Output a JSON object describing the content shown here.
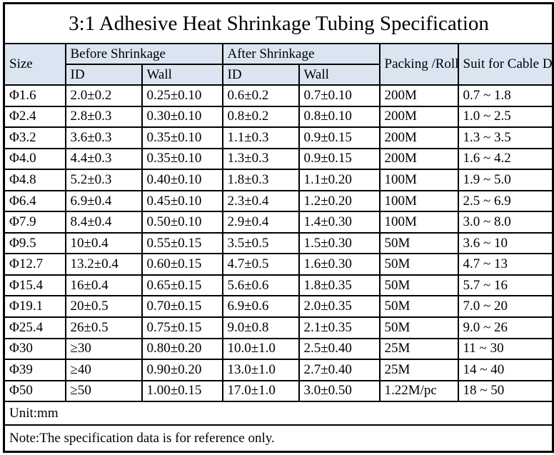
{
  "title": "3:1 Adhesive Heat Shrinkage Tubing Specification",
  "colors": {
    "header_bg": "#dbe5f1",
    "border": "#000000",
    "text": "#000000",
    "page_bg": "#ffffff"
  },
  "table": {
    "headers": {
      "size": "Size",
      "before_shrinkage": "Before Shrinkage",
      "after_shrinkage": "After Shrinkage",
      "id": "ID",
      "wall": "Wall",
      "packing_roll": "Packing\n/Roll",
      "cable_diameter": "Suit for Cable\nDiameter"
    },
    "column_keys": [
      "size",
      "before-id",
      "before-wall",
      "after-id",
      "after-wall",
      "packing-roll",
      "cable-range"
    ],
    "rows": [
      [
        "Φ1.6",
        "2.0±0.2",
        "0.25±0.10",
        "0.6±0.2",
        "0.7±0.10",
        "200M",
        "0.7 ~ 1.8"
      ],
      [
        "Φ2.4",
        "2.8±0.3",
        "0.30±0.10",
        "0.8±0.2",
        "0.8±0.10",
        "200M",
        "1.0 ~ 2.5"
      ],
      [
        "Φ3.2",
        "3.6±0.3",
        "0.35±0.10",
        "1.1±0.3",
        "0.9±0.15",
        "200M",
        "1.3 ~ 3.5"
      ],
      [
        "Φ4.0",
        "4.4±0.3",
        "0.35±0.10",
        "1.3±0.3",
        "0.9±0.15",
        "200M",
        "1.6 ~ 4.2"
      ],
      [
        "Φ4.8",
        "5.2±0.3",
        "0.40±0.10",
        "1.8±0.3",
        "1.1±0.20",
        "100M",
        "1.9 ~ 5.0"
      ],
      [
        "Φ6.4",
        "6.9±0.4",
        "0.45±0.10",
        "2.3±0.4",
        "1.2±0.20",
        "100M",
        "2.5 ~ 6.9"
      ],
      [
        "Φ7.9",
        "8.4±0.4",
        "0.50±0.10",
        "2.9±0.4",
        "1.4±0.30",
        "100M",
        "3.0 ~ 8.0"
      ],
      [
        "Φ9.5",
        "10±0.4",
        "0.55±0.15",
        "3.5±0.5",
        "1.5±0.30",
        "50M",
        "3.6 ~ 10"
      ],
      [
        "Φ12.7",
        "13.2±0.4",
        "0.60±0.15",
        "4.7±0.5",
        "1.6±0.30",
        "50M",
        "4.7 ~ 13"
      ],
      [
        "Φ15.4",
        "16±0.4",
        "0.65±0.15",
        "5.6±0.6",
        "1.8±0.35",
        "50M",
        "5.7 ~ 16"
      ],
      [
        "Φ19.1",
        "20±0.5",
        "0.70±0.15",
        "6.9±0.6",
        "2.0±0.35",
        "50M",
        "7.0 ~ 20"
      ],
      [
        "Φ25.4",
        "26±0.5",
        "0.75±0.15",
        "9.0±0.8",
        "2.1±0.35",
        "50M",
        "9.0 ~ 26"
      ],
      [
        "Φ30",
        "≥30",
        "0.80±0.20",
        "10.0±1.0",
        "2.5±0.40",
        "25M",
        "11 ~ 30"
      ],
      [
        "Φ39",
        "≥40",
        "0.90±0.20",
        "13.0±1.0",
        "2.7±0.40",
        "25M",
        "14 ~ 40"
      ],
      [
        "Φ50",
        "≥50",
        "1.00±0.15",
        "17.0±1.0",
        "3.0±0.50",
        "1.22M/pc",
        "18 ~ 50"
      ]
    ],
    "footer": {
      "unit": "Unit:mm",
      "note": "Note:The specification data is for reference only."
    }
  }
}
